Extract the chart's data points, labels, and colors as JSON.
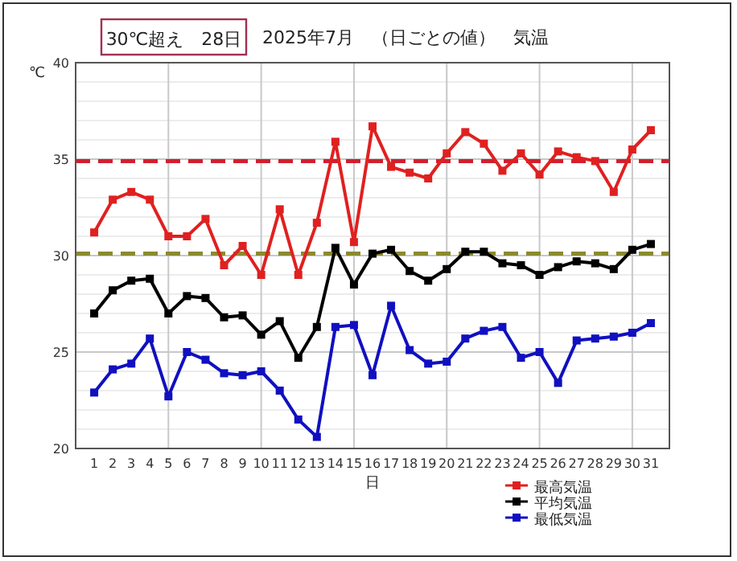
{
  "chart_data": {
    "type": "line",
    "title": "2025年7月　（日ごとの値）　気温",
    "annotations": [
      "30℃超え　28日"
    ],
    "xlabel": "日",
    "ylabel": "℃",
    "x": [
      1,
      2,
      3,
      4,
      5,
      6,
      7,
      8,
      9,
      10,
      11,
      12,
      13,
      14,
      15,
      16,
      17,
      18,
      19,
      20,
      21,
      22,
      23,
      24,
      25,
      26,
      27,
      28,
      29,
      30,
      31
    ],
    "xlim": [
      0,
      32
    ],
    "xticks": [
      1,
      2,
      3,
      4,
      5,
      6,
      7,
      8,
      9,
      10,
      11,
      12,
      13,
      14,
      15,
      16,
      17,
      18,
      19,
      20,
      21,
      22,
      23,
      24,
      25,
      26,
      27,
      28,
      29,
      30,
      31
    ],
    "ylim": [
      20,
      40
    ],
    "yticks": [
      20,
      {
        "value": 21,
        "label": null
      },
      {
        "value": 22,
        "label": null
      },
      {
        "value": 23,
        "label": null
      },
      {
        "value": 24,
        "label": null
      },
      25,
      {
        "value": 26,
        "label": null
      },
      {
        "value": 27,
        "label": null
      },
      {
        "value": 28,
        "label": null
      },
      {
        "value": 29,
        "label": null
      },
      30,
      {
        "value": 31,
        "label": null
      },
      {
        "value": 32,
        "label": null
      },
      {
        "value": 33,
        "label": null
      },
      {
        "value": 34,
        "label": null
      },
      35,
      {
        "value": 36,
        "label": null
      },
      {
        "value": 37,
        "label": null
      },
      {
        "value": 38,
        "label": null
      },
      {
        "value": 39,
        "label": null
      },
      40
    ],
    "grid": true,
    "legend": "bottom right",
    "marker": "square",
    "line_style": "solid",
    "series": [
      {
        "name": "最高気温",
        "color": "#e02020",
        "values": [
          31.2,
          32.9,
          33.3,
          32.9,
          31.0,
          31.0,
          31.9,
          29.5,
          30.5,
          29.0,
          32.4,
          29.0,
          31.7,
          35.9,
          30.7,
          36.7,
          34.6,
          34.3,
          34.0,
          35.3,
          36.4,
          35.8,
          34.4,
          35.3,
          34.2,
          35.4,
          35.1,
          34.9,
          33.3,
          35.5,
          36.5
        ]
      },
      {
        "name": "平均気温",
        "color": "#000000",
        "values": [
          27.0,
          28.2,
          28.7,
          28.8,
          27.0,
          27.9,
          27.8,
          26.8,
          26.9,
          25.9,
          26.6,
          24.7,
          26.3,
          30.4,
          28.5,
          30.1,
          30.3,
          29.2,
          28.7,
          29.3,
          30.2,
          30.2,
          29.6,
          29.5,
          29.0,
          29.4,
          29.7,
          29.6,
          29.3,
          30.3,
          30.6
        ]
      },
      {
        "name": "最低気温",
        "color": "#1010c0",
        "values": [
          22.9,
          24.1,
          24.4,
          25.7,
          22.7,
          25.0,
          24.6,
          23.9,
          23.8,
          24.0,
          23.0,
          21.5,
          20.6,
          26.3,
          26.4,
          23.8,
          27.4,
          25.1,
          24.4,
          24.5,
          25.7,
          26.1,
          26.3,
          24.7,
          25.0,
          23.4,
          25.6,
          25.7,
          25.8,
          26.0,
          26.5
        ]
      }
    ],
    "ref_lines": [
      {
        "axis": "y",
        "value": 34.9,
        "color": "#d02030",
        "line_style": "dashed"
      },
      {
        "axis": "y",
        "value": 30.1,
        "color": "#8a8a30",
        "line_style": "dashed"
      }
    ]
  }
}
